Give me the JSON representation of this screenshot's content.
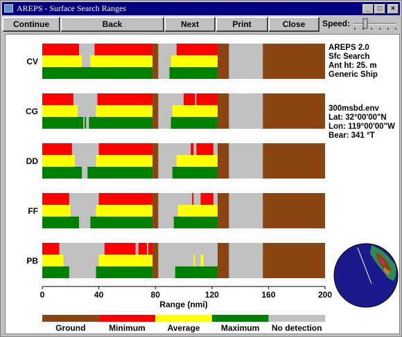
{
  "window": {
    "title": "AREPS - Surface Search Ranges",
    "minimize": "_",
    "maximize": "□",
    "close": "×"
  },
  "toolbar": {
    "continue_label": "Continue",
    "back_label": "Back",
    "next_label": "Next",
    "print_label": "Print",
    "close_label": "Close",
    "speed_label": "Speed:"
  },
  "info": {
    "program": "AREPS 2.0",
    "product": "Sfc Search",
    "antenna": "Ant ht: 25. m",
    "platform": "Generic Ship",
    "env_file": "300msbd.env",
    "lat": "Lat:  32°00'00\"N",
    "lon": "Lon: 119°00'00\"W",
    "bear": "Bear: 341 °T"
  },
  "colors": {
    "ground": "#8b4513",
    "minimum": "#ff0000",
    "average": "#ffff00",
    "maximum": "#008000",
    "nodetect": "#c0c0c0"
  },
  "chart_data": {
    "type": "bar",
    "xlabel": "Range (nmi)",
    "xlim": [
      0,
      200
    ],
    "xticks": [
      0,
      40,
      80,
      120,
      160,
      200
    ],
    "legend": [
      "Ground",
      "Minimum",
      "Average",
      "Maximum",
      "No detection"
    ],
    "ground_ranges": [
      [
        78,
        82
      ],
      [
        124,
        132
      ],
      [
        156,
        200
      ]
    ],
    "rows": [
      {
        "label": "CV",
        "minimum": [
          [
            0,
            26
          ],
          [
            37,
            78
          ],
          [
            95,
            124
          ]
        ],
        "average": [
          [
            0,
            28
          ],
          [
            34,
            78
          ],
          [
            91,
            124
          ]
        ],
        "maximum": [
          [
            0,
            78
          ],
          [
            90,
            124
          ]
        ]
      },
      {
        "label": "CG",
        "minimum": [
          [
            0,
            22
          ],
          [
            39,
            78
          ],
          [
            100,
            108
          ],
          [
            109,
            124
          ]
        ],
        "average": [
          [
            0,
            25
          ],
          [
            38,
            78
          ],
          [
            92,
            124
          ]
        ],
        "maximum": [
          [
            0,
            29
          ],
          [
            30,
            31
          ],
          [
            33,
            78
          ],
          [
            91,
            124
          ]
        ]
      },
      {
        "label": "DD",
        "minimum": [
          [
            0,
            21
          ],
          [
            40,
            78
          ],
          [
            105,
            107
          ],
          [
            109,
            121
          ]
        ],
        "average": [
          [
            0,
            23
          ],
          [
            38,
            78
          ],
          [
            95,
            124
          ]
        ],
        "maximum": [
          [
            0,
            28
          ],
          [
            32,
            78
          ],
          [
            92,
            124
          ]
        ]
      },
      {
        "label": "FF",
        "minimum": [
          [
            0,
            19
          ],
          [
            40,
            78
          ],
          [
            106,
            107
          ],
          [
            112,
            121
          ]
        ],
        "average": [
          [
            0,
            20
          ],
          [
            38,
            78
          ],
          [
            96,
            124
          ]
        ],
        "maximum": [
          [
            0,
            26
          ],
          [
            34,
            78
          ],
          [
            93,
            124
          ]
        ]
      },
      {
        "label": "PB",
        "minimum": [
          [
            0,
            12
          ],
          [
            44,
            66
          ],
          [
            68,
            74
          ],
          [
            75,
            78
          ]
        ],
        "average": [
          [
            0,
            15
          ],
          [
            40,
            78
          ],
          [
            107,
            108
          ],
          [
            112,
            114
          ]
        ],
        "maximum": [
          [
            0,
            19
          ],
          [
            38,
            78
          ],
          [
            94,
            124
          ]
        ]
      }
    ]
  }
}
